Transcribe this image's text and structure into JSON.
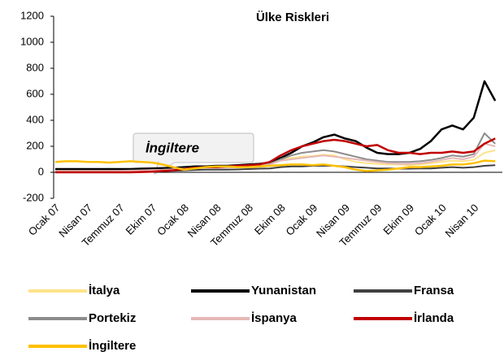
{
  "chart_data": {
    "type": "line",
    "title": "Ülke Riskleri",
    "annotation": "İngiltere",
    "categories": [
      "Ocak 07",
      null,
      null,
      "Nisan 07",
      null,
      null,
      "Temmuz 07",
      null,
      null,
      "Ekim 07",
      null,
      null,
      "Ocak 08",
      null,
      null,
      "Nisan 08",
      null,
      null,
      "Temmuz 08",
      null,
      null,
      "Ekim 08",
      null,
      null,
      "Ocak 09",
      null,
      null,
      "Nisan 09",
      null,
      null,
      "Temmuz 09",
      null,
      null,
      "Ekim 09",
      null,
      null,
      "Ocak 10",
      null,
      null,
      "Nisan 10",
      null,
      null
    ],
    "ylim": [
      -200,
      1200
    ],
    "yticks": [
      -200,
      0,
      200,
      400,
      600,
      800,
      1000,
      1200
    ],
    "grid": false,
    "series": [
      {
        "name": "İtalya",
        "color": "#fde38a",
        "values": [
          10,
          10,
          10,
          10,
          10,
          10,
          10,
          12,
          15,
          18,
          20,
          25,
          30,
          35,
          35,
          40,
          40,
          45,
          50,
          55,
          70,
          100,
          110,
          120,
          125,
          135,
          130,
          100,
          80,
          70,
          65,
          60,
          60,
          55,
          60,
          70,
          80,
          90,
          85,
          95,
          150,
          170
        ]
      },
      {
        "name": "Yunanistan",
        "color": "#000000",
        "values": [
          25,
          25,
          25,
          25,
          25,
          25,
          25,
          25,
          28,
          30,
          32,
          35,
          40,
          45,
          45,
          50,
          50,
          55,
          60,
          65,
          75,
          110,
          150,
          200,
          230,
          270,
          290,
          260,
          240,
          190,
          150,
          140,
          140,
          150,
          180,
          240,
          330,
          360,
          330,
          420,
          700,
          550
        ]
      },
      {
        "name": "Fransa",
        "color": "#404040",
        "values": [
          5,
          5,
          5,
          5,
          5,
          5,
          5,
          6,
          8,
          10,
          10,
          12,
          15,
          18,
          20,
          20,
          20,
          22,
          25,
          28,
          30,
          40,
          45,
          45,
          50,
          50,
          50,
          45,
          40,
          35,
          30,
          30,
          28,
          28,
          30,
          30,
          35,
          40,
          35,
          40,
          50,
          55
        ]
      },
      {
        "name": "Portekiz",
        "color": "#8c8c8c",
        "values": [
          10,
          10,
          10,
          10,
          10,
          10,
          12,
          14,
          16,
          18,
          20,
          25,
          30,
          35,
          40,
          40,
          40,
          45,
          50,
          55,
          65,
          100,
          130,
          150,
          160,
          170,
          160,
          140,
          120,
          100,
          90,
          80,
          80,
          80,
          85,
          95,
          110,
          130,
          120,
          140,
          300,
          220
        ]
      },
      {
        "name": "İspanya",
        "color": "#e6b8b7",
        "values": [
          10,
          10,
          10,
          10,
          10,
          10,
          10,
          12,
          14,
          16,
          18,
          20,
          25,
          30,
          35,
          35,
          35,
          40,
          45,
          50,
          60,
          90,
          100,
          110,
          120,
          130,
          120,
          110,
          100,
          90,
          80,
          70,
          65,
          65,
          70,
          80,
          95,
          110,
          100,
          120,
          220,
          200
        ]
      },
      {
        "name": "İrlanda",
        "color": "#c00000",
        "values": [
          0,
          0,
          0,
          0,
          0,
          0,
          0,
          0,
          2,
          5,
          10,
          15,
          25,
          35,
          40,
          40,
          45,
          50,
          55,
          60,
          80,
          130,
          170,
          200,
          220,
          240,
          250,
          240,
          220,
          200,
          210,
          170,
          150,
          150,
          140,
          150,
          150,
          160,
          150,
          160,
          220,
          260
        ]
      },
      {
        "name": "İngiltere",
        "color": "#ffc000",
        "values": [
          80,
          85,
          85,
          80,
          80,
          75,
          80,
          85,
          80,
          75,
          60,
          40,
          20,
          30,
          40,
          45,
          45,
          40,
          40,
          45,
          50,
          55,
          60,
          60,
          55,
          60,
          50,
          40,
          20,
          10,
          15,
          20,
          30,
          40,
          40,
          45,
          50,
          60,
          60,
          70,
          90,
          85
        ]
      }
    ]
  }
}
